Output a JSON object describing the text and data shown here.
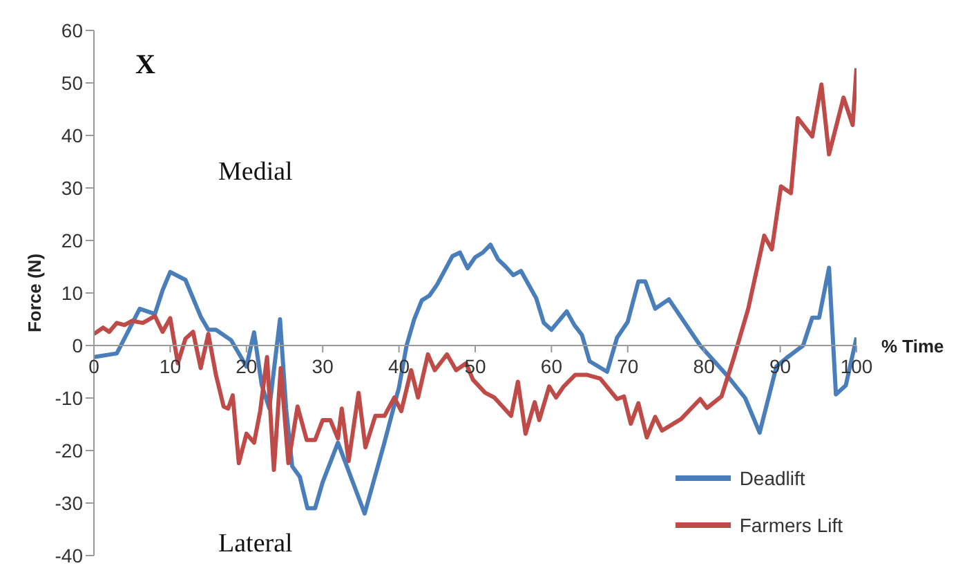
{
  "chart_data": {
    "type": "line",
    "xlabel": "% Time",
    "ylabel": "Force (N)",
    "annotations": [
      "X",
      "Medial",
      "Lateral"
    ],
    "xlim": [
      0,
      100
    ],
    "xticks": [
      0,
      10,
      20,
      30,
      40,
      50,
      60,
      70,
      80,
      90,
      100
    ],
    "ylim": [
      -40,
      60
    ],
    "yticks": [
      -40,
      -30,
      -20,
      -10,
      0,
      10,
      20,
      30,
      40,
      50,
      60
    ],
    "grid": false,
    "legend": "bottom right",
    "marker": "none",
    "line_style": "solid",
    "series": [
      {
        "name": "Deadlift",
        "color": "#4a7ebb",
        "x": [
          0,
          3,
          6,
          8,
          9,
          10,
          12,
          14,
          15,
          16,
          18,
          20,
          21,
          22,
          23,
          24.4,
          25.2,
          26,
          27,
          28,
          29,
          30,
          32,
          35.5,
          38,
          40,
          41,
          42,
          43,
          44,
          45,
          47,
          48,
          49,
          50,
          51,
          52,
          53,
          54,
          55,
          56,
          58,
          59,
          60,
          62,
          63,
          64,
          65,
          67.3,
          68.6,
          70,
          71.4,
          72.3,
          73.6,
          75.4,
          79.5,
          83.2,
          85.4,
          87.3,
          89.5,
          90.8,
          93,
          94.2,
          95.1,
          96.4,
          97.3,
          98.6,
          100
        ],
        "values": [
          -2.2,
          -1.5,
          7,
          6,
          10.5,
          14,
          12.5,
          5.5,
          3,
          3,
          1,
          -4,
          2.5,
          -7.5,
          -12,
          5,
          -12,
          -23,
          -25,
          -31,
          -31,
          -26,
          -18.5,
          -32,
          -19,
          -8,
          0,
          5,
          8.6,
          9.5,
          11.6,
          17,
          17.7,
          14.7,
          16.8,
          17.7,
          19.2,
          16.4,
          15,
          13.4,
          14.2,
          9,
          4.3,
          3,
          6.5,
          3.9,
          2,
          -3,
          -5,
          1.5,
          4.5,
          12.2,
          12.2,
          7,
          8.8,
          0,
          -6,
          -10,
          -16.6,
          -4,
          -2.4,
          0,
          5.3,
          5.3,
          14.8,
          -9.3,
          -7.6,
          1.5
        ]
      },
      {
        "name": "Farmers Lift",
        "color": "#be4b48",
        "x": [
          0,
          1.2,
          2,
          3,
          4,
          5,
          6.4,
          8,
          9,
          10,
          11,
          12,
          13,
          14,
          15,
          16,
          17,
          17.6,
          18.2,
          19,
          20,
          21,
          21.8,
          22.7,
          23.6,
          24.5,
          25.5,
          26.7,
          27.9,
          29,
          30,
          31,
          32,
          32.5,
          33.4,
          34.7,
          35.6,
          36.9,
          38.1,
          39.4,
          40.3,
          41.6,
          42.5,
          43.8,
          44.7,
          46.3,
          47.5,
          48.8,
          49.7,
          51.3,
          52.5,
          54.7,
          55.6,
          56.6,
          57.8,
          58.4,
          59.7,
          60.6,
          61.6,
          63.1,
          64.7,
          66.4,
          68.6,
          69.5,
          70.4,
          71.4,
          72.5,
          73.6,
          74.5,
          77,
          79.5,
          80.4,
          82.3,
          83.9,
          85.8,
          87.9,
          88.9,
          90.1,
          91.4,
          92.3,
          94.2,
          95.4,
          96.4,
          98.3,
          99.5,
          100
        ],
        "values": [
          2.2,
          3.4,
          2.6,
          4.3,
          3.9,
          4.7,
          4.3,
          5.6,
          2.6,
          5.2,
          -3.4,
          1.3,
          2.6,
          -4.3,
          2.2,
          -5.6,
          -11.6,
          -12,
          -9.5,
          -22.4,
          -16.8,
          -18.5,
          -12.5,
          -2.2,
          -23.7,
          -4.3,
          -22.4,
          -11.6,
          -18,
          -18,
          -14.2,
          -14.2,
          -17.7,
          -12,
          -22,
          -9,
          -19.4,
          -13.4,
          -13.4,
          -9.9,
          -12.5,
          -4.7,
          -9.9,
          -1.7,
          -4.7,
          -1.7,
          -4.7,
          -3.4,
          -6.5,
          -9,
          -9.9,
          -13.4,
          -6.9,
          -16.8,
          -10.8,
          -14.2,
          -7.8,
          -9.9,
          -7.8,
          -5.6,
          -5.6,
          -6.3,
          -10.2,
          -9.7,
          -14.9,
          -11,
          -17.5,
          -13.6,
          -16.2,
          -14,
          -10.2,
          -11.9,
          -9.7,
          -2.4,
          7,
          20.9,
          18.3,
          30.3,
          29,
          43.3,
          39.8,
          49.7,
          36.4,
          47.2,
          42,
          52.8
        ]
      }
    ]
  }
}
